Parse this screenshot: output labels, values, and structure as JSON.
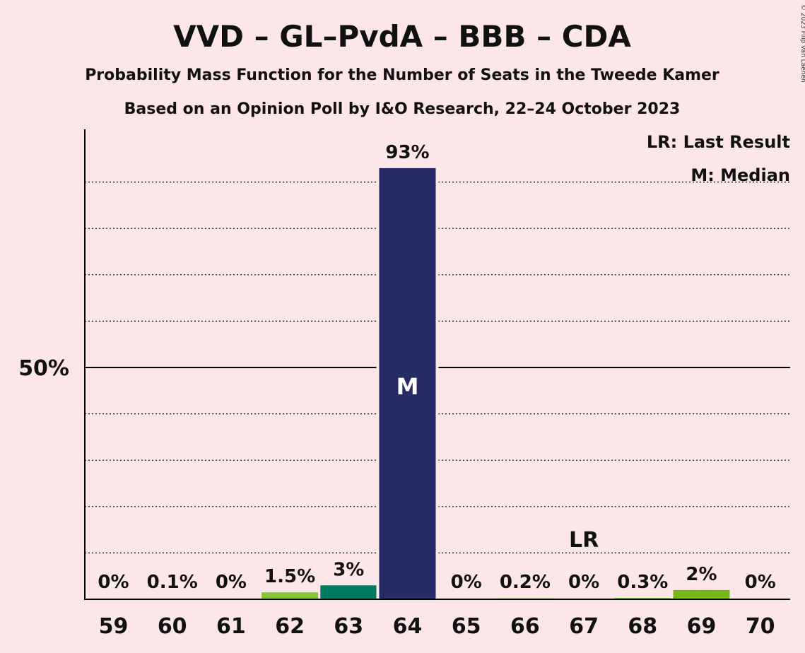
{
  "header": {
    "title": "VVD – GL–PvdA – BBB – CDA",
    "subtitle1": "Probability Mass Function for the Number of Seats in the Tweede Kamer",
    "subtitle2": "Based on an Opinion Poll by I&O Research, 22–24 October 2023",
    "copyright": "© 2023 Filip van Laenen"
  },
  "legend": {
    "last_result": "LR: Last Result",
    "median": "M: Median"
  },
  "chart_data": {
    "type": "bar",
    "title": "VVD – GL–PvdA – BBB – CDA",
    "categories": [
      "59",
      "60",
      "61",
      "62",
      "63",
      "64",
      "65",
      "66",
      "67",
      "68",
      "69",
      "70"
    ],
    "values": [
      0,
      0.1,
      0,
      1.5,
      3,
      93,
      0,
      0.2,
      0,
      0.3,
      2,
      0
    ],
    "value_labels": [
      "0%",
      "0.1%",
      "0%",
      "1.5%",
      "3%",
      "93%",
      "0%",
      "0.2%",
      "0%",
      "0.3%",
      "2%",
      "0%"
    ],
    "bar_colors": [
      "#8ac43f",
      "#8ac43f",
      "#8ac43f",
      "#8ac43f",
      "#007a5e",
      "#262a66",
      "#8ac43f",
      "#8ac43f",
      "#8ac43f",
      "#8ac43f",
      "#74b81c",
      "#8ac43f"
    ],
    "ylim": [
      0,
      100
    ],
    "y_tick_label": "50%",
    "y_tick_value": 50,
    "grid": true,
    "median_category": "64",
    "median_marker": "M",
    "last_result_category": "67",
    "last_result_marker": "LR",
    "legend_position": "top-right"
  }
}
